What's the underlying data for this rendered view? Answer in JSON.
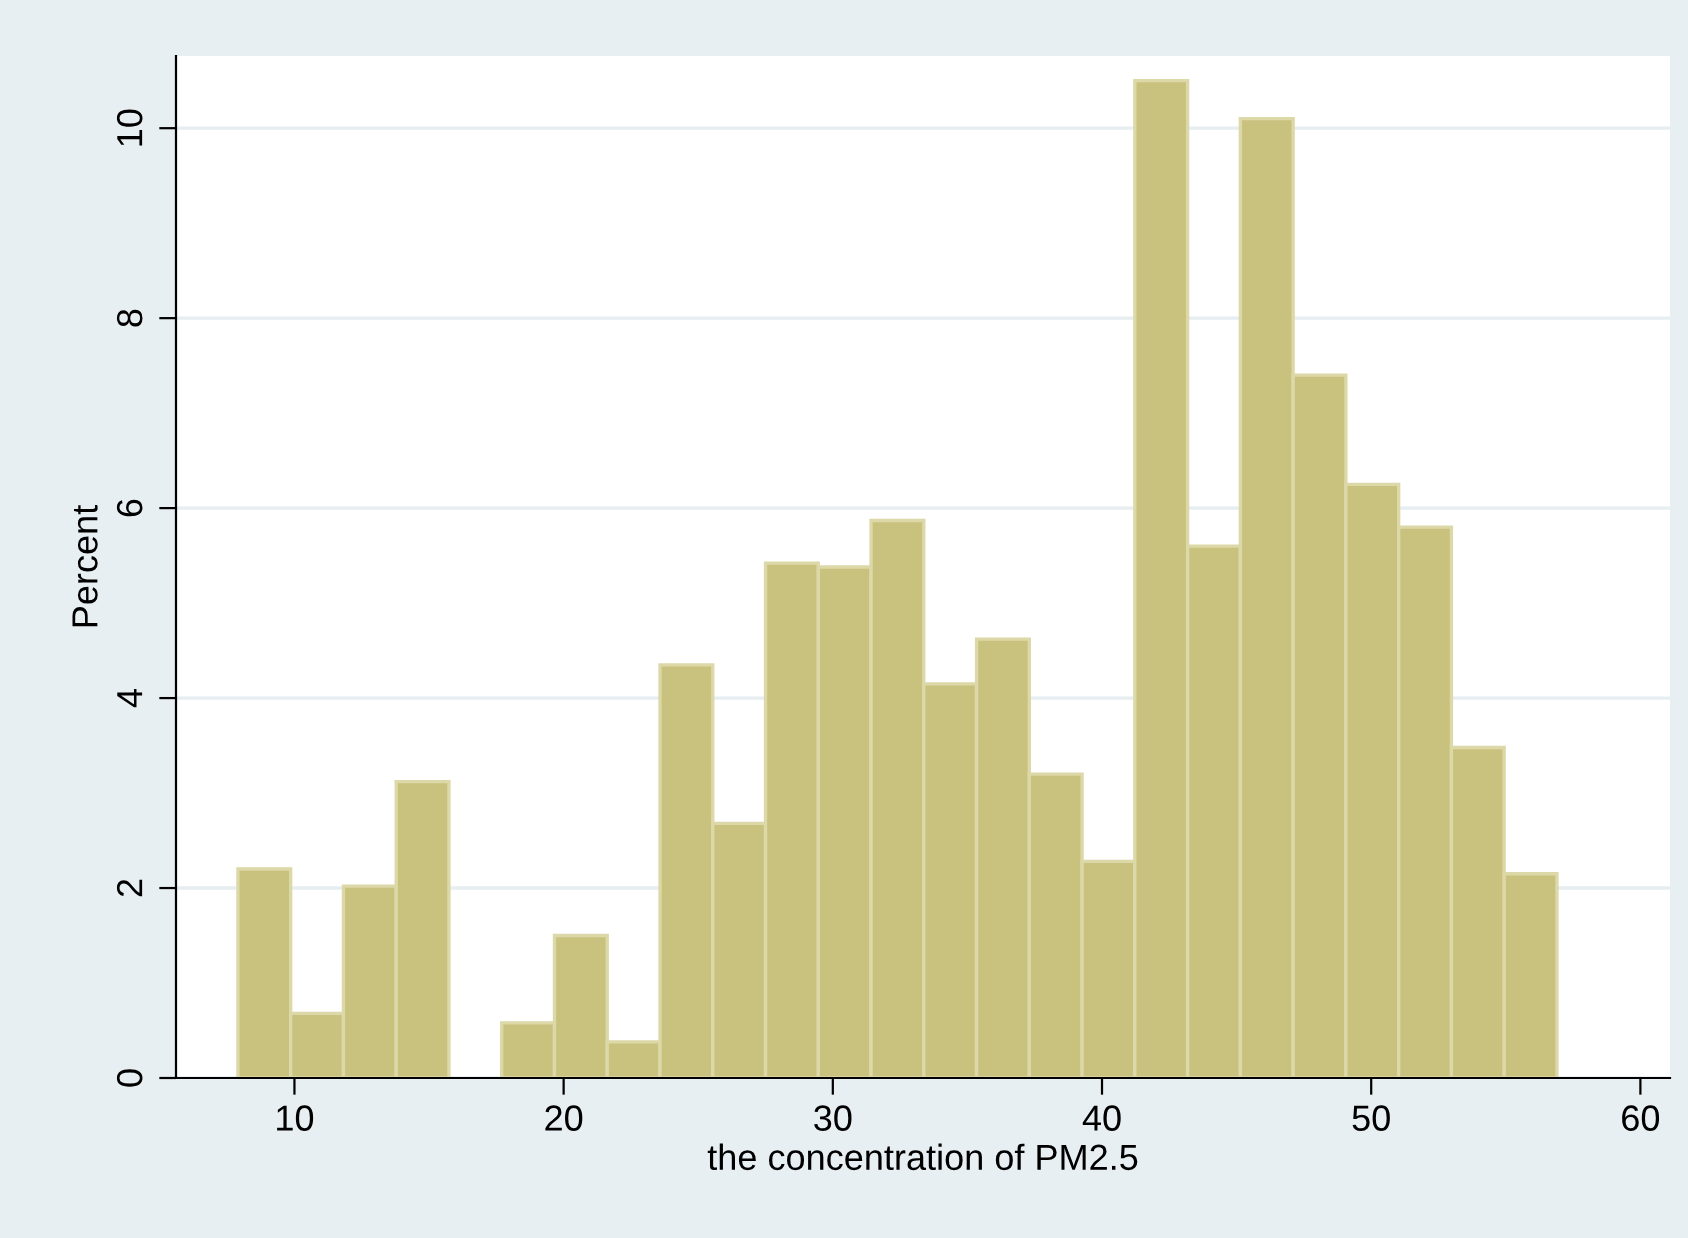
{
  "chart_data": {
    "type": "histogram",
    "xlabel": "the concentration of PM2.5",
    "ylabel": "Percent",
    "bins": [
      7.9,
      9.86,
      11.82,
      13.78,
      15.74,
      17.7,
      19.66,
      21.62,
      23.58,
      25.54,
      27.5,
      29.46,
      31.42,
      33.38,
      35.34,
      37.3,
      39.26,
      41.22,
      43.18,
      45.14,
      47.1,
      49.06,
      51.02,
      52.98,
      54.94,
      56.9
    ],
    "values": [
      2.2,
      0.68,
      2.02,
      3.12,
      0,
      0.58,
      1.5,
      0.38,
      4.35,
      2.68,
      5.42,
      5.38,
      5.87,
      4.15,
      4.62,
      3.2,
      2.28,
      10.5,
      5.6,
      10.1,
      7.4,
      6.25,
      5.8,
      3.48,
      2.15
    ],
    "color": "#c9c27f",
    "xlim": [
      5.6,
      61.1
    ],
    "ylim": [
      0,
      10.76
    ],
    "xticks": [
      10,
      20,
      30,
      40,
      50,
      60
    ],
    "yticks": [
      0,
      2,
      4,
      6,
      8,
      10
    ],
    "grid": "y"
  }
}
